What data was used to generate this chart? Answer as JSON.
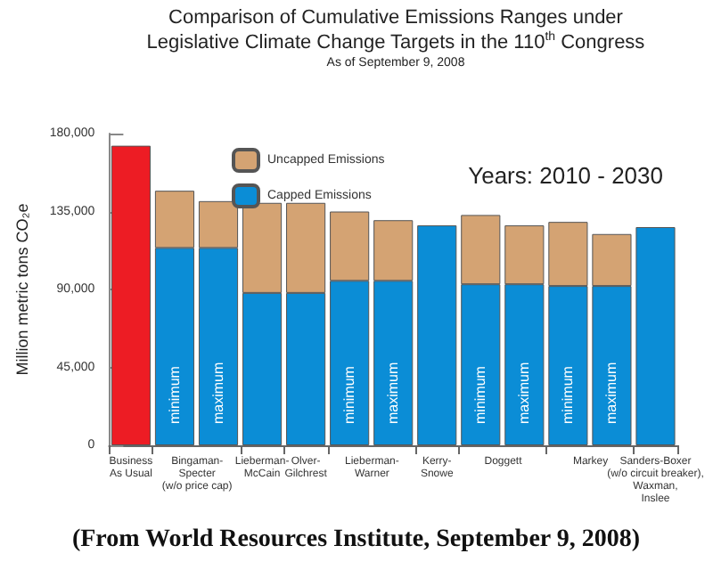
{
  "chart_data": {
    "type": "bar",
    "stacked": true,
    "title": "Comparison of Cumulative Emissions Ranges under Legislative Climate Change Targets in the 110$^{th}$ Congress",
    "subtitle": "As of September 9, 2008",
    "ylabel": "Million metric tons CO₂e",
    "annotations": [
      "Years: 2010 - 2030",
      "(From World Resources Institute, September 9, 2008)"
    ],
    "categories": [
      "Business\nAs Usual",
      "Bingaman-\nSpecter\n(w/o price cap)",
      null,
      "Lieberman-\nMcCain",
      "Olver-\nGilchrest",
      "Lieberman-\nWarner",
      null,
      "Kerry-\nSnowe",
      "Doggett",
      null,
      "Markey",
      null,
      "Sanders-Boxer\n(w/o circuit breaker),\nWaxman,\nInslee"
    ],
    "series": [
      {
        "color": "#ed1c24",
        "values": [
          173000,
          null,
          null,
          null,
          null,
          null,
          null,
          null,
          null,
          null,
          null,
          null,
          null
        ]
      },
      {
        "name": "Capped Emissions",
        "color": "#0b8dd6",
        "values": [
          null,
          114000,
          114000,
          88000,
          88000,
          95000,
          95000,
          127000,
          93000,
          93000,
          92000,
          92000,
          126000
        ],
        "value_labels": [
          null,
          "minimum",
          "maximum",
          null,
          null,
          "minimum",
          "maximum",
          null,
          "minimum",
          "maximum",
          "minimum",
          "maximum",
          null
        ]
      },
      {
        "name": "Uncapped Emissions",
        "color": "#d4a373",
        "values": [
          null,
          33000,
          27000,
          52000,
          52000,
          40000,
          35000,
          null,
          40000,
          34000,
          37000,
          30000,
          null
        ]
      }
    ],
    "ylim": [
      0,
      180000
    ],
    "yticks": [
      {
        "value": 0,
        "label": "0"
      },
      {
        "value": 45000,
        "label": "45,000"
      },
      {
        "value": 90000,
        "label": "90,000"
      },
      {
        "value": 135000,
        "label": "135,000"
      },
      {
        "value": 180000,
        "label": "180,000"
      }
    ],
    "grid": false,
    "legend": "top"
  }
}
